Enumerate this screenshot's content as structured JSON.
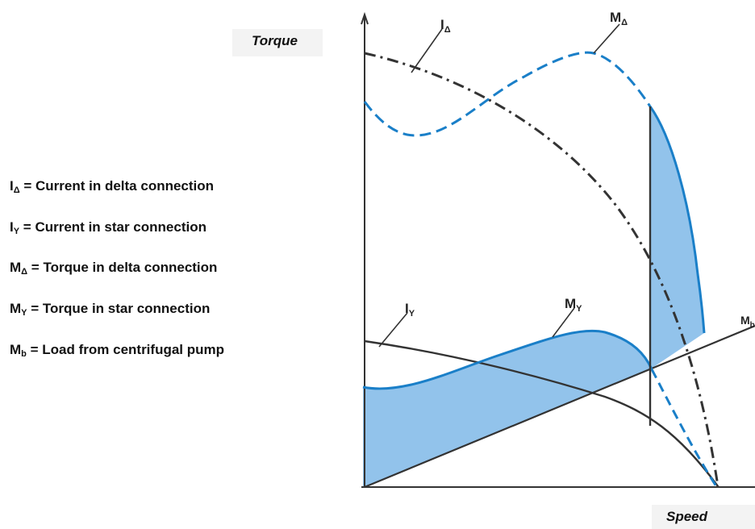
{
  "axes": {
    "y_title": "Torque",
    "x_title": "Speed"
  },
  "legend": [
    {
      "sym": "I",
      "sub": "Δ",
      "text": " = Current in delta connection"
    },
    {
      "sym": "I",
      "sub": "Y",
      "text": " = Current in star connection"
    },
    {
      "sym": "M",
      "sub": "Δ",
      "text": " = Torque in delta connection"
    },
    {
      "sym": "M",
      "sub": "Y",
      "text": " = Torque in star connection"
    },
    {
      "sym": "M",
      "sub": "b",
      "text": " = Load from centrifugal pump"
    }
  ],
  "curve_labels": {
    "i_delta": {
      "sym": "I",
      "sub": "Δ"
    },
    "m_delta": {
      "sym": "M",
      "sub": "Δ"
    },
    "i_star": {
      "sym": "I",
      "sub": "Y"
    },
    "m_star": {
      "sym": "M",
      "sub": "Y"
    },
    "m_load": {
      "sym": "M",
      "sub": "b"
    }
  },
  "colors": {
    "torque_curve": "#1a7fc8",
    "fill": "#7fb8e8",
    "current_curve": "#333333",
    "axis": "#333333"
  }
}
